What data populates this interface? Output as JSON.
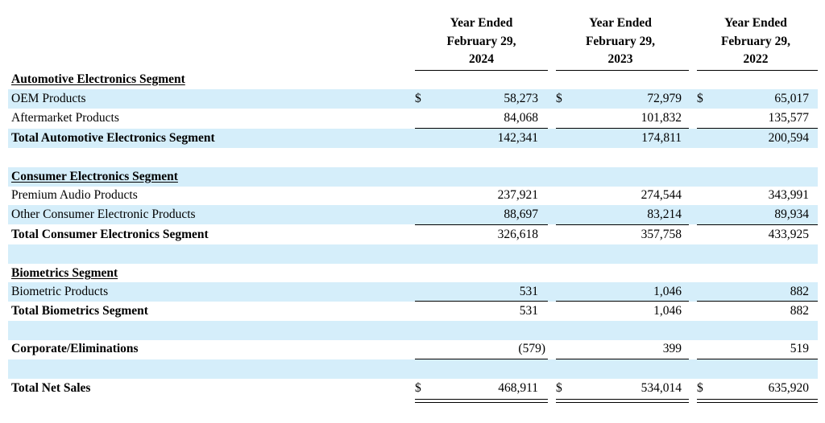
{
  "headers": [
    [
      "Year Ended",
      "February 29,",
      "2024"
    ],
    [
      "Year Ended",
      "February 29,",
      "2023"
    ],
    [
      "Year Ended",
      "February 29,",
      "2022"
    ]
  ],
  "sections": {
    "automotive": {
      "title": "Automotive Electronics Segment",
      "oem": {
        "label": "OEM Products",
        "currency": "$",
        "values": [
          "58,273",
          "72,979",
          "65,017"
        ]
      },
      "aftermarket": {
        "label": "Aftermarket Products",
        "values": [
          "84,068",
          "101,832",
          "135,577"
        ]
      },
      "total": {
        "label": "Total Automotive Electronics Segment",
        "values": [
          "142,341",
          "174,811",
          "200,594"
        ]
      }
    },
    "consumer": {
      "title": "Consumer Electronics Segment",
      "premium": {
        "label": "Premium Audio Products",
        "values": [
          "237,921",
          "274,544",
          "343,991"
        ]
      },
      "other": {
        "label": "Other Consumer Electronic Products",
        "values": [
          "88,697",
          "83,214",
          "89,934"
        ]
      },
      "total": {
        "label": "Total Consumer Electronics Segment",
        "values": [
          "326,618",
          "357,758",
          "433,925"
        ]
      }
    },
    "biometrics": {
      "title": "Biometrics Segment",
      "products": {
        "label": "Biometric Products",
        "values": [
          "531",
          "1,046",
          "882"
        ]
      },
      "total": {
        "label": "Total Biometrics Segment",
        "values": [
          "531",
          "1,046",
          "882"
        ]
      }
    },
    "corporate": {
      "label": "Corporate/Eliminations",
      "values": [
        "(579)",
        "399",
        "519"
      ]
    },
    "net_sales": {
      "label": "Total Net Sales",
      "currency": "$",
      "values": [
        "468,911",
        "534,014",
        "635,920"
      ]
    }
  },
  "colors": {
    "row_shade": "#d5eefa"
  }
}
